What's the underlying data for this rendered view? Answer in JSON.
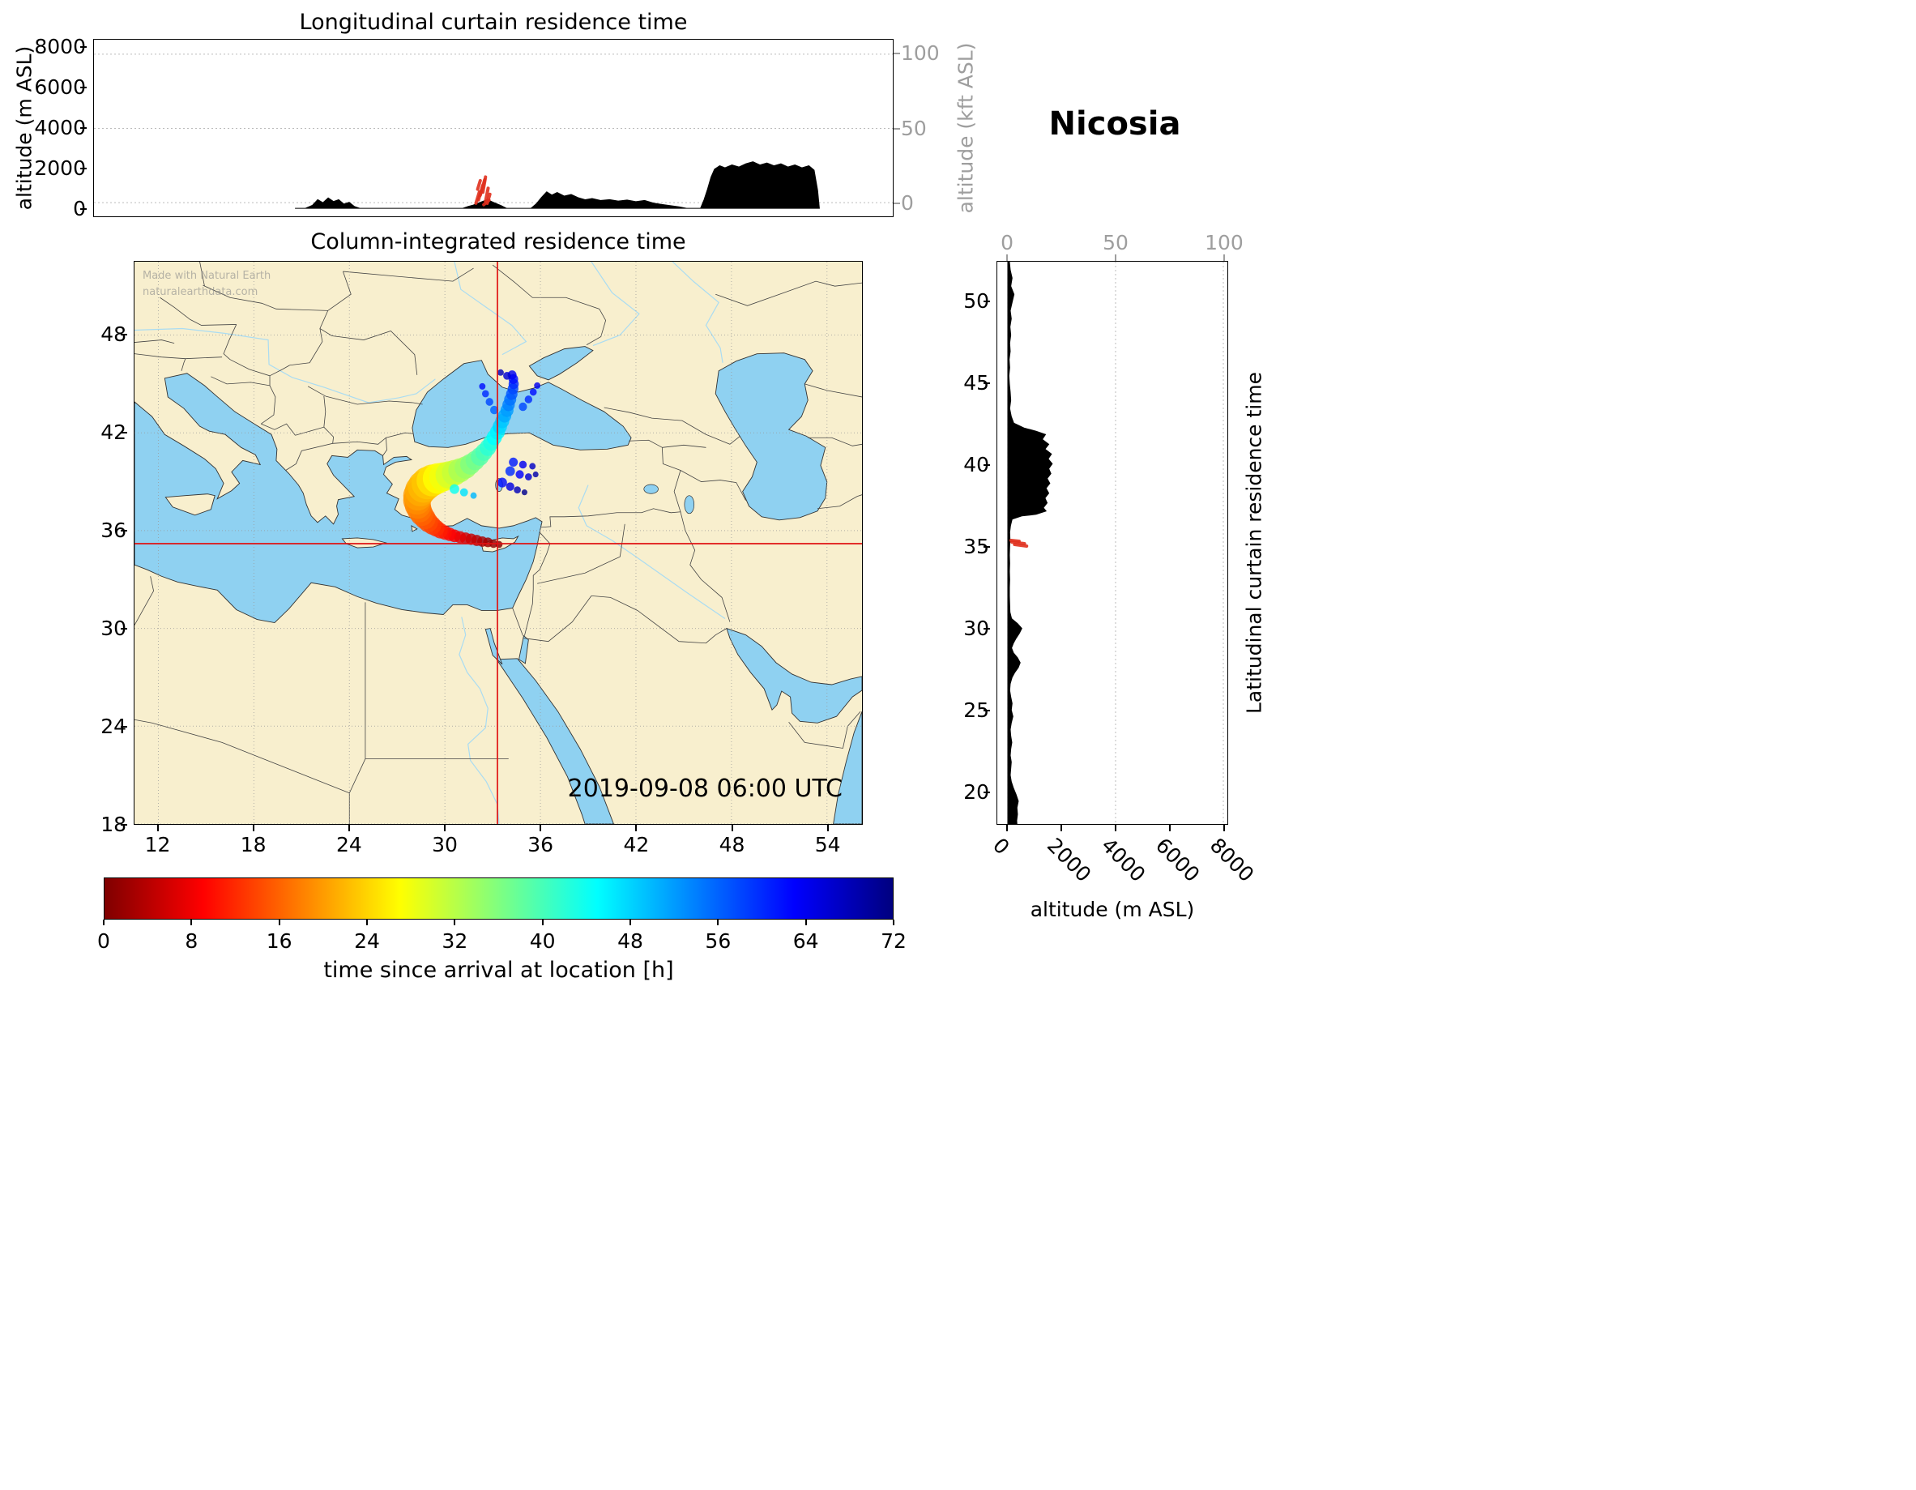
{
  "figure": {
    "station": "Nicosia",
    "timestamp": "2019-09-08 06:00 UTC",
    "watermark_line1": "Made with Natural Earth",
    "watermark_line2": "naturalearthdata.com"
  },
  "panels": {
    "top": {
      "title": "Longitudinal curtain residence time",
      "ylabel_left": "altitude (m ASL)",
      "ylabel_right": "altitude (kft ASL)",
      "yticks_left": [
        "8000",
        "6000",
        "4000",
        "2000",
        "0"
      ],
      "yticks_right": [
        "100",
        "50",
        "0"
      ]
    },
    "map": {
      "title": "Column-integrated residence time",
      "xticks": [
        "12",
        "18",
        "24",
        "30",
        "36",
        "42",
        "48",
        "54"
      ],
      "yticks": [
        "48",
        "42",
        "36",
        "30",
        "24",
        "18"
      ]
    },
    "right": {
      "ylabel_right": "Latitudinal curtain residence time",
      "xlabel": "altitude (m ASL)",
      "xticks_top": [
        "0",
        "50",
        "100"
      ],
      "xticks_bottom": [
        "0",
        "2000",
        "4000",
        "6000",
        "8000"
      ],
      "yticks": [
        "50",
        "45",
        "40",
        "35",
        "30",
        "25",
        "20"
      ]
    },
    "colorbar": {
      "label": "time since arrival at location [h]",
      "ticks": [
        "0",
        "8",
        "16",
        "24",
        "32",
        "40",
        "48",
        "56",
        "64",
        "72"
      ]
    }
  },
  "chart_data": [
    {
      "id": "longitudinal_curtain",
      "type": "area",
      "title": "Longitudinal curtain residence time",
      "ylabel": "altitude (m ASL)",
      "ylabel_right": "altitude (kft ASL)",
      "xlim": [
        10.5,
        56.2
      ],
      "ylim": [
        -400,
        8400
      ],
      "right_axis_kft_ticks": [
        0,
        50,
        100
      ],
      "terrain_profile_m": [
        [
          22.0,
          0
        ],
        [
          22.6,
          0
        ],
        [
          23.0,
          150
        ],
        [
          23.3,
          430
        ],
        [
          23.6,
          280
        ],
        [
          23.9,
          520
        ],
        [
          24.2,
          340
        ],
        [
          24.5,
          430
        ],
        [
          24.8,
          210
        ],
        [
          25.1,
          300
        ],
        [
          25.4,
          90
        ],
        [
          25.7,
          0
        ],
        [
          31.6,
          0
        ],
        [
          31.9,
          90
        ],
        [
          32.2,
          160
        ],
        [
          32.6,
          300
        ],
        [
          33.0,
          430
        ],
        [
          33.4,
          280
        ],
        [
          33.8,
          130
        ],
        [
          34.1,
          0
        ],
        [
          35.5,
          0
        ],
        [
          35.8,
          220
        ],
        [
          36.1,
          540
        ],
        [
          36.4,
          820
        ],
        [
          36.7,
          660
        ],
        [
          37.0,
          790
        ],
        [
          37.4,
          610
        ],
        [
          37.8,
          690
        ],
        [
          38.2,
          530
        ],
        [
          38.6,
          430
        ],
        [
          39.0,
          490
        ],
        [
          39.5,
          390
        ],
        [
          40.0,
          430
        ],
        [
          40.5,
          360
        ],
        [
          41.0,
          410
        ],
        [
          41.5,
          330
        ],
        [
          42.0,
          390
        ],
        [
          42.5,
          260
        ],
        [
          43.0,
          190
        ],
        [
          43.5,
          130
        ],
        [
          44.0,
          70
        ],
        [
          44.4,
          0
        ],
        [
          45.2,
          0
        ],
        [
          45.4,
          420
        ],
        [
          45.6,
          950
        ],
        [
          45.8,
          1550
        ],
        [
          46.0,
          1950
        ],
        [
          46.3,
          2120
        ],
        [
          46.6,
          2020
        ],
        [
          47.0,
          2160
        ],
        [
          47.4,
          2060
        ],
        [
          47.8,
          2220
        ],
        [
          48.2,
          2320
        ],
        [
          48.6,
          2160
        ],
        [
          49.0,
          2260
        ],
        [
          49.4,
          2120
        ],
        [
          49.8,
          2220
        ],
        [
          50.2,
          2060
        ],
        [
          50.6,
          2160
        ],
        [
          51.0,
          2020
        ],
        [
          51.4,
          2120
        ],
        [
          51.7,
          1900
        ],
        [
          51.9,
          900
        ],
        [
          52.0,
          0
        ]
      ],
      "plume_segments": [
        [
          32.35,
          250,
          32.55,
          820
        ],
        [
          32.5,
          420,
          32.75,
          1150
        ],
        [
          32.6,
          650,
          32.85,
          1420
        ],
        [
          32.75,
          800,
          32.9,
          1560
        ],
        [
          32.9,
          350,
          33.05,
          1000
        ],
        [
          33.0,
          250,
          33.15,
          700
        ],
        [
          32.45,
          950,
          32.6,
          1380
        ],
        [
          32.8,
          180,
          33.1,
          400
        ]
      ]
    },
    {
      "id": "map",
      "type": "scatter",
      "title": "Column-integrated residence time",
      "xlim": [
        10.5,
        56.2
      ],
      "ylim": [
        18,
        52.5
      ],
      "receptor": {
        "name": "Nicosia",
        "lon": 33.3,
        "lat": 35.2
      },
      "timestamp": "2019-09-08 06:00 UTC",
      "value_label": "time since arrival at location [h]",
      "trajectory_points": [
        [
          33.4,
          35.15,
          0,
          0.22
        ],
        [
          33.05,
          35.2,
          1,
          0.26
        ],
        [
          32.7,
          35.28,
          2,
          0.3
        ],
        [
          32.35,
          35.33,
          3,
          0.32
        ],
        [
          32.0,
          35.4,
          4,
          0.34
        ],
        [
          31.65,
          35.47,
          5,
          0.35
        ],
        [
          31.3,
          35.53,
          6,
          0.36
        ],
        [
          30.95,
          35.6,
          7,
          0.37
        ],
        [
          30.6,
          35.68,
          8,
          0.39
        ],
        [
          30.3,
          35.77,
          9,
          0.41
        ],
        [
          30.0,
          35.88,
          10,
          0.44
        ],
        [
          29.7,
          36.0,
          11,
          0.48
        ],
        [
          29.45,
          36.15,
          12,
          0.52
        ],
        [
          29.2,
          36.32,
          13,
          0.57
        ],
        [
          28.95,
          36.52,
          14,
          0.62
        ],
        [
          28.75,
          36.75,
          15,
          0.67
        ],
        [
          28.55,
          37.0,
          16,
          0.72
        ],
        [
          28.4,
          37.27,
          17,
          0.77
        ],
        [
          28.3,
          37.55,
          18,
          0.82
        ],
        [
          28.25,
          37.85,
          19,
          0.87
        ],
        [
          28.3,
          38.15,
          20,
          0.92
        ],
        [
          28.45,
          38.45,
          21,
          0.96
        ],
        [
          28.65,
          38.7,
          22,
          0.99
        ],
        [
          28.9,
          38.92,
          23,
          1.0
        ],
        [
          29.2,
          39.08,
          25,
          0.98
        ],
        [
          29.55,
          39.2,
          27,
          0.94
        ],
        [
          29.9,
          39.3,
          28,
          0.89
        ],
        [
          30.25,
          39.42,
          30,
          0.84
        ],
        [
          30.6,
          39.55,
          31,
          0.79
        ],
        [
          30.95,
          39.7,
          33,
          0.74
        ],
        [
          31.3,
          39.87,
          34,
          0.69
        ],
        [
          31.6,
          40.07,
          36,
          0.64
        ],
        [
          31.9,
          40.3,
          37,
          0.6
        ],
        [
          32.2,
          40.55,
          39,
          0.57
        ],
        [
          32.45,
          40.82,
          40,
          0.54
        ],
        [
          32.7,
          41.1,
          42,
          0.52
        ],
        [
          32.9,
          41.4,
          43,
          0.5
        ],
        [
          33.1,
          41.72,
          45,
          0.48
        ],
        [
          33.3,
          42.05,
          46,
          0.47
        ],
        [
          33.45,
          42.38,
          48,
          0.45
        ],
        [
          33.6,
          42.72,
          49,
          0.44
        ],
        [
          33.75,
          43.05,
          51,
          0.42
        ],
        [
          33.9,
          43.38,
          52,
          0.41
        ],
        [
          34.0,
          43.72,
          54,
          0.39
        ],
        [
          34.1,
          44.05,
          55,
          0.38
        ],
        [
          34.2,
          44.38,
          57,
          0.36
        ],
        [
          34.28,
          44.7,
          58,
          0.34
        ],
        [
          34.32,
          45.0,
          60,
          0.32
        ],
        [
          34.3,
          45.3,
          62,
          0.3
        ],
        [
          34.22,
          45.55,
          64,
          0.28
        ]
      ],
      "trajectory_wisps": [
        [
          33.6,
          38.95,
          62,
          0.3
        ],
        [
          34.1,
          38.7,
          65,
          0.26
        ],
        [
          34.55,
          38.5,
          68,
          0.22
        ],
        [
          35.0,
          38.35,
          71,
          0.18
        ],
        [
          34.1,
          39.65,
          60,
          0.3
        ],
        [
          34.7,
          39.45,
          63,
          0.26
        ],
        [
          35.25,
          39.3,
          66,
          0.22
        ],
        [
          35.7,
          39.45,
          69,
          0.18
        ],
        [
          34.3,
          40.2,
          61,
          0.28
        ],
        [
          34.9,
          40.05,
          64,
          0.24
        ],
        [
          35.5,
          39.95,
          67,
          0.2
        ],
        [
          30.6,
          38.55,
          44,
          0.3
        ],
        [
          31.2,
          38.35,
          47,
          0.25
        ],
        [
          31.8,
          38.15,
          50,
          0.2
        ],
        [
          33.1,
          43.4,
          56,
          0.26
        ],
        [
          32.8,
          43.9,
          58,
          0.24
        ],
        [
          32.55,
          44.4,
          60,
          0.22
        ],
        [
          32.35,
          44.85,
          62,
          0.2
        ],
        [
          34.9,
          43.6,
          58,
          0.26
        ],
        [
          35.25,
          44.05,
          60,
          0.24
        ],
        [
          35.55,
          44.5,
          62,
          0.22
        ],
        [
          35.8,
          44.9,
          64,
          0.2
        ],
        [
          33.9,
          45.5,
          66,
          0.24
        ],
        [
          33.5,
          45.7,
          68,
          0.2
        ]
      ]
    },
    {
      "id": "latitudinal_curtain",
      "type": "area",
      "title": "Latitudinal curtain residence time",
      "xlabel": "altitude (m ASL)",
      "xlim": [
        -390,
        8150
      ],
      "ylim": [
        18,
        52.5
      ],
      "top_axis_kft_ticks": [
        0,
        50,
        100
      ],
      "terrain_profile_m": [
        [
          52.5,
          60
        ],
        [
          52.0,
          90
        ],
        [
          51.5,
          160
        ],
        [
          51.0,
          110
        ],
        [
          50.5,
          230
        ],
        [
          50.0,
          160
        ],
        [
          49.5,
          90
        ],
        [
          49.0,
          130
        ],
        [
          48.5,
          80
        ],
        [
          48.0,
          110
        ],
        [
          47.5,
          70
        ],
        [
          47.0,
          90
        ],
        [
          46.5,
          50
        ],
        [
          46.0,
          70
        ],
        [
          45.5,
          40
        ],
        [
          45.0,
          60
        ],
        [
          44.5,
          90
        ],
        [
          44.0,
          110
        ],
        [
          43.5,
          70
        ],
        [
          43.0,
          130
        ],
        [
          42.6,
          220
        ],
        [
          42.3,
          600
        ],
        [
          42.1,
          1050
        ],
        [
          41.9,
          1400
        ],
        [
          41.6,
          1280
        ],
        [
          41.3,
          1520
        ],
        [
          41.0,
          1380
        ],
        [
          40.7,
          1620
        ],
        [
          40.4,
          1500
        ],
        [
          40.1,
          1650
        ],
        [
          39.8,
          1520
        ],
        [
          39.5,
          1600
        ],
        [
          39.2,
          1460
        ],
        [
          38.9,
          1560
        ],
        [
          38.6,
          1420
        ],
        [
          38.3,
          1520
        ],
        [
          38.0,
          1380
        ],
        [
          37.7,
          1460
        ],
        [
          37.4,
          1320
        ],
        [
          37.2,
          1420
        ],
        [
          37.0,
          1050
        ],
        [
          36.9,
          520
        ],
        [
          36.7,
          160
        ],
        [
          36.3,
          100
        ],
        [
          35.9,
          70
        ],
        [
          35.5,
          80
        ],
        [
          35.0,
          70
        ],
        [
          34.5,
          60
        ],
        [
          34.0,
          70
        ],
        [
          33.5,
          60
        ],
        [
          33.0,
          70
        ],
        [
          32.5,
          60
        ],
        [
          32.0,
          60
        ],
        [
          31.5,
          70
        ],
        [
          31.0,
          80
        ],
        [
          30.6,
          140
        ],
        [
          30.3,
          360
        ],
        [
          30.0,
          520
        ],
        [
          29.7,
          430
        ],
        [
          29.4,
          310
        ],
        [
          29.1,
          210
        ],
        [
          28.8,
          140
        ],
        [
          28.5,
          210
        ],
        [
          28.2,
          360
        ],
        [
          27.9,
          460
        ],
        [
          27.6,
          390
        ],
        [
          27.3,
          260
        ],
        [
          27.0,
          160
        ],
        [
          26.6,
          90
        ],
        [
          26.2,
          70
        ],
        [
          25.8,
          110
        ],
        [
          25.4,
          160
        ],
        [
          25.0,
          130
        ],
        [
          24.6,
          190
        ],
        [
          24.2,
          130
        ],
        [
          23.8,
          90
        ],
        [
          23.4,
          110
        ],
        [
          23.0,
          150
        ],
        [
          22.6,
          110
        ],
        [
          22.2,
          90
        ],
        [
          21.8,
          130
        ],
        [
          21.4,
          110
        ],
        [
          21.0,
          90
        ],
        [
          20.6,
          130
        ],
        [
          20.2,
          210
        ],
        [
          19.8,
          310
        ],
        [
          19.4,
          390
        ],
        [
          19.0,
          340
        ],
        [
          18.6,
          360
        ],
        [
          18.2,
          330
        ],
        [
          18.0,
          340
        ]
      ],
      "plume_segments": [
        [
          150,
          35.3,
          620,
          35.2
        ],
        [
          250,
          35.15,
          700,
          35.05
        ],
        [
          120,
          35.4,
          420,
          35.35
        ]
      ]
    },
    {
      "id": "colorbar",
      "type": "colorbar",
      "label": "time since arrival at location [h]",
      "range": [
        0,
        72
      ],
      "ticks": [
        0,
        8,
        16,
        24,
        32,
        40,
        48,
        56,
        64,
        72
      ],
      "stops": [
        [
          0,
          "#7f0000"
        ],
        [
          9,
          "#ff0000"
        ],
        [
          27,
          "#ffff00"
        ],
        [
          45,
          "#00ffff"
        ],
        [
          63,
          "#0000ff"
        ],
        [
          72,
          "#00007f"
        ]
      ]
    }
  ]
}
